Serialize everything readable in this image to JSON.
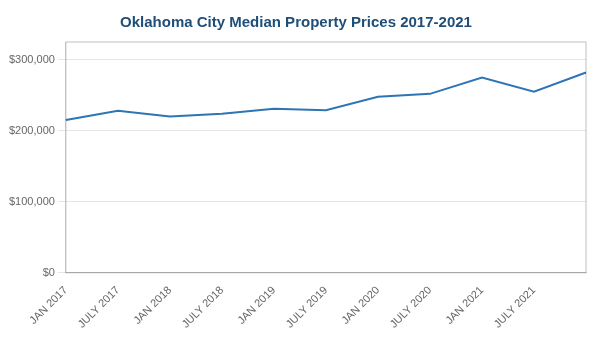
{
  "chart_data": {
    "type": "line",
    "title": "Oklahoma City Median Property Prices 2017-2021",
    "categories": [
      "JAN 2017",
      "JULY 2017",
      "JAN 2018",
      "JULY 2018",
      "JAN 2019",
      "JULY 2019",
      "JAN 2020",
      "JULY 2020",
      "JAN 2021",
      "JULY 2021",
      null
    ],
    "values": [
      215000,
      228000,
      220000,
      224000,
      231000,
      229000,
      248000,
      252000,
      275000,
      255000,
      282000
    ],
    "color": "#2e75b6",
    "ylim": [
      0,
      325000
    ],
    "yticks": [
      {
        "value": 0,
        "label": "$0"
      },
      {
        "value": 100000,
        "label": "$100,000"
      },
      {
        "value": 200000,
        "label": "$200,000"
      },
      {
        "value": 300000,
        "label": "$300,000"
      }
    ],
    "grid": true
  }
}
